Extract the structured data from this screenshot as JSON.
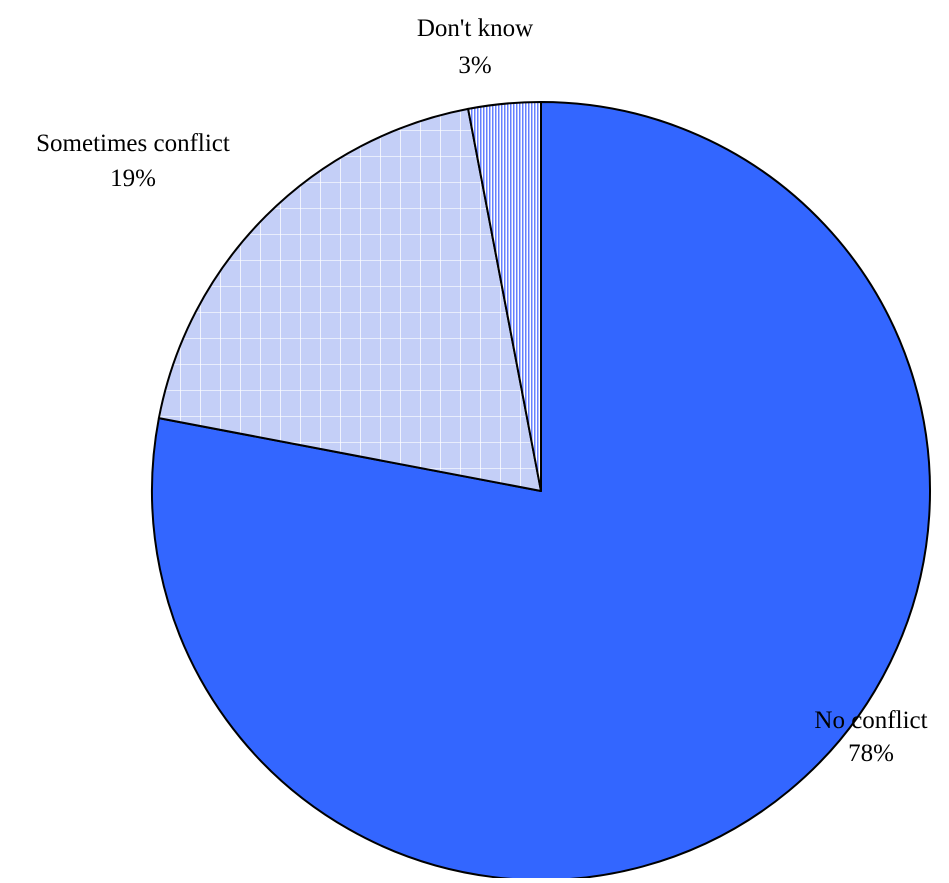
{
  "chart_data": {
    "type": "pie",
    "title": "",
    "slices": [
      {
        "label": "No conflict",
        "value": 78,
        "value_label": "78%",
        "fill": "#3366ff",
        "pattern": "solid"
      },
      {
        "label": "Sometimes conflict",
        "value": 19,
        "value_label": "19%",
        "fill": "#c0ccff",
        "pattern": "grid"
      },
      {
        "label": "Don't know",
        "value": 3,
        "value_label": "3%",
        "fill": "#99aaff",
        "pattern": "vertical-lines"
      }
    ],
    "start_angle": "12 o'clock",
    "direction": "clockwise",
    "legend": "none",
    "labels": "outside"
  }
}
